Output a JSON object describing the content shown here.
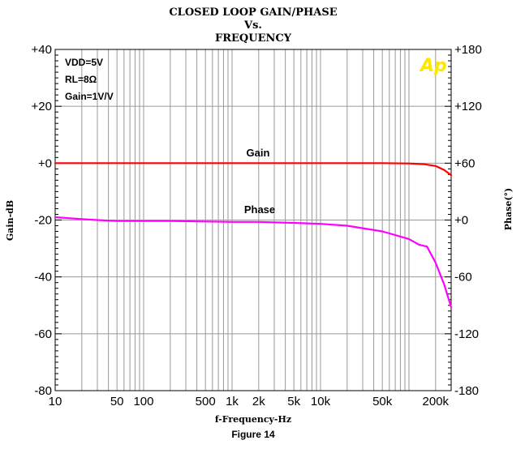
{
  "chart_data": {
    "type": "line",
    "title": [
      "CLOSED LOOP GAIN/PHASE",
      "Vs.",
      "FREQUENCY"
    ],
    "xlabel": "f-Frequency-Hz",
    "ylabel": "Gain-dB",
    "ylabel_right": "Phase(°)",
    "caption": "Figure 14",
    "logo": "Ap",
    "x_scale": "log",
    "xlim": [
      10,
      300000
    ],
    "ylim": [
      -80,
      40
    ],
    "ylim_right": [
      -180,
      180
    ],
    "grid": true,
    "x_tick_labels": [
      {
        "value": 10,
        "label": "10"
      },
      {
        "value": 50,
        "label": "50"
      },
      {
        "value": 100,
        "label": "100"
      },
      {
        "value": 500,
        "label": "500"
      },
      {
        "value": 1000,
        "label": "1k"
      },
      {
        "value": 2000,
        "label": "2k"
      },
      {
        "value": 5000,
        "label": "5k"
      },
      {
        "value": 10000,
        "label": "10k"
      },
      {
        "value": 50000,
        "label": "50k"
      },
      {
        "value": 200000,
        "label": "200k"
      }
    ],
    "y_tick_labels": [
      "+40",
      "+20",
      "+0",
      "-20",
      "-40",
      "-60",
      "-80"
    ],
    "y_tick_values": [
      40,
      20,
      0,
      -20,
      -40,
      -60,
      -80
    ],
    "y_right_tick_labels": [
      "+180",
      "+120",
      "+60",
      "+0",
      "-60",
      "-120",
      "-180"
    ],
    "y_right_tick_values": [
      180,
      120,
      60,
      0,
      -60,
      -120,
      -180
    ],
    "conditions": [
      "VDD=5V",
      "RL=8Ω",
      "Gain=1V/V"
    ],
    "series": [
      {
        "name": "Gain",
        "axis": "left",
        "color": "#ff0000",
        "x": [
          10,
          100,
          1000,
          10000,
          50000,
          100000,
          150000,
          200000,
          250000,
          300000
        ],
        "y": [
          0,
          0,
          0,
          0,
          0,
          -0.1,
          -0.4,
          -1.0,
          -2.4,
          -4.2
        ]
      },
      {
        "name": "Phase",
        "axis": "right",
        "color": "#ff00ff",
        "x": [
          10,
          20,
          30,
          50,
          100,
          200,
          500,
          1000,
          2000,
          5000,
          10000,
          20000,
          50000,
          100000,
          130000,
          160000,
          200000,
          250000,
          300000
        ],
        "y": [
          3,
          1,
          0,
          -1,
          -1,
          -1,
          -1.5,
          -2,
          -2,
          -3,
          -4,
          -6,
          -12,
          -20,
          -26,
          -28,
          -45,
          -68,
          -92
        ]
      }
    ]
  }
}
